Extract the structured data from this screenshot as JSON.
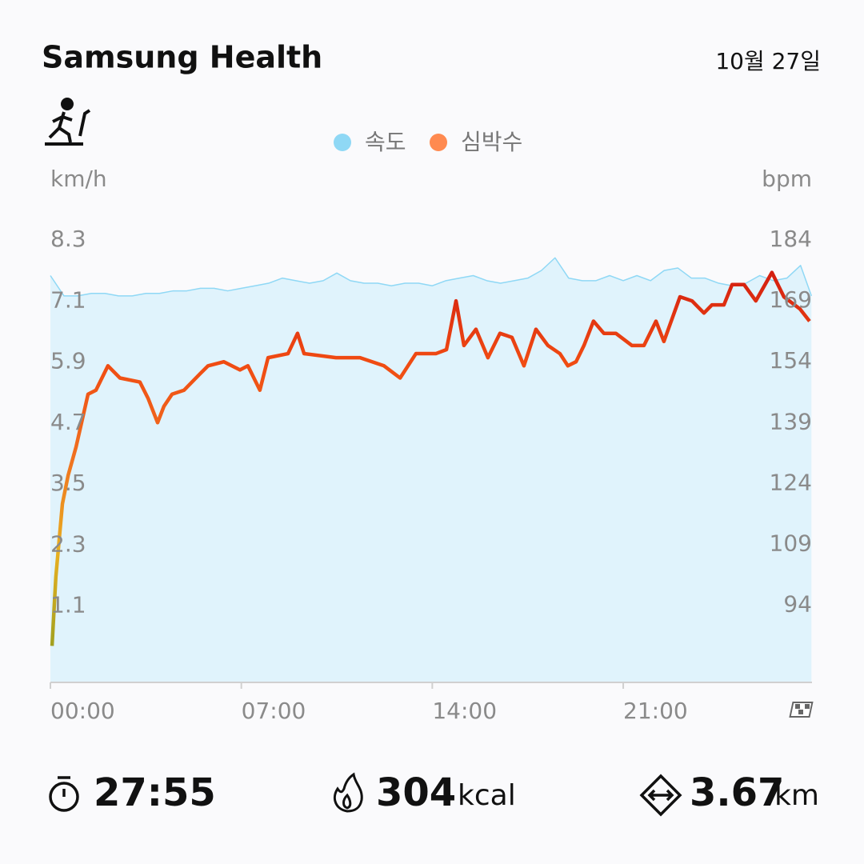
{
  "header": {
    "title": "Samsung Health",
    "date": "10월 27일"
  },
  "chart_data": {
    "type": "line",
    "y_label": "km/h",
    "y2_label": "bpm",
    "xlim": [
      0,
      27.92
    ],
    "xticks": [
      {
        "value": 0,
        "label": "00:00"
      },
      {
        "value": 7,
        "label": "07:00"
      },
      {
        "value": 14,
        "label": "14:00"
      },
      {
        "value": 21,
        "label": "21:00"
      }
    ],
    "ylim": [
      -0.4,
      8.3
    ],
    "yticks": [
      8.3,
      7.1,
      5.9,
      4.7,
      3.5,
      2.3,
      1.1
    ],
    "y2lim": [
      75,
      184
    ],
    "y2ticks": [
      184,
      169,
      154,
      139,
      124,
      109,
      94
    ],
    "series": [
      {
        "name": "속도",
        "color": "#8fd8f5",
        "legend_color": "#8fd8f5",
        "fill": "#e0f3fc",
        "x": [
          0,
          0.5,
          1,
          1.5,
          2,
          2.5,
          3,
          3.5,
          4,
          4.5,
          5,
          5.5,
          6,
          6.5,
          7,
          7.5,
          8,
          8.5,
          9,
          9.5,
          10,
          10.5,
          11,
          11.5,
          12,
          12.5,
          13,
          13.5,
          14,
          14.5,
          15,
          15.5,
          16,
          16.5,
          17,
          17.5,
          18,
          18.5,
          19,
          19.5,
          20,
          20.5,
          21,
          21.5,
          22,
          22.5,
          23,
          23.5,
          24,
          24.5,
          25,
          25.5,
          26,
          26.5,
          27,
          27.5,
          27.9
        ],
        "values": [
          7.6,
          7.2,
          7.2,
          7.25,
          7.25,
          7.2,
          7.2,
          7.25,
          7.25,
          7.3,
          7.3,
          7.35,
          7.35,
          7.3,
          7.35,
          7.4,
          7.45,
          7.55,
          7.5,
          7.45,
          7.5,
          7.65,
          7.5,
          7.45,
          7.45,
          7.4,
          7.45,
          7.45,
          7.4,
          7.5,
          7.55,
          7.6,
          7.5,
          7.45,
          7.5,
          7.55,
          7.7,
          7.95,
          7.55,
          7.5,
          7.5,
          7.6,
          7.5,
          7.6,
          7.5,
          7.7,
          7.75,
          7.55,
          7.55,
          7.45,
          7.4,
          7.45,
          7.6,
          7.5,
          7.55,
          7.8,
          7.2
        ]
      },
      {
        "name": "심박수",
        "color": "#e03a12",
        "legend_color": "#ff8a50",
        "axis": "y2",
        "gradient": [
          "#d01a10",
          "#f04a12",
          "#f07020",
          "#e8b020",
          "#a0a020"
        ],
        "x": [
          0.06,
          0.2,
          0.44,
          0.65,
          0.94,
          1.38,
          1.67,
          2.11,
          2.55,
          3.28,
          3.58,
          3.93,
          4.16,
          4.46,
          4.9,
          5.48,
          5.78,
          6.36,
          6.95,
          7.24,
          7.68,
          7.98,
          8.71,
          9.06,
          9.3,
          10.47,
          11.35,
          12.23,
          12.82,
          13.4,
          14.13,
          14.52,
          14.87,
          15.16,
          15.6,
          16.04,
          16.48,
          16.92,
          17.36,
          17.8,
          18.24,
          18.68,
          18.97,
          19.27,
          19.56,
          19.91,
          20.29,
          20.73,
          21.32,
          21.76,
          22.2,
          22.49,
          23.08,
          23.52,
          23.96,
          24.25,
          24.69,
          24.99,
          25.43,
          25.86,
          26.45,
          26.89,
          27.48,
          27.83
        ],
        "values": [
          84,
          101,
          119,
          126,
          133,
          146,
          147,
          153,
          150,
          149,
          145,
          139,
          143,
          146,
          147,
          151,
          153,
          154,
          152,
          153,
          147,
          155,
          156,
          161,
          156,
          155,
          155,
          153,
          150,
          156,
          156,
          157,
          169,
          158,
          162,
          155,
          161,
          160,
          153,
          162,
          158,
          156,
          153,
          154,
          158,
          164,
          161,
          161,
          158,
          158,
          164,
          159,
          170,
          169,
          166,
          168,
          168,
          173,
          173,
          169,
          176,
          170,
          167,
          164
        ]
      }
    ]
  },
  "stats": [
    {
      "value": "27:55"
    },
    {
      "value": "304",
      "unit": "kcal"
    },
    {
      "value": "3.67",
      "unit": "km"
    }
  ]
}
